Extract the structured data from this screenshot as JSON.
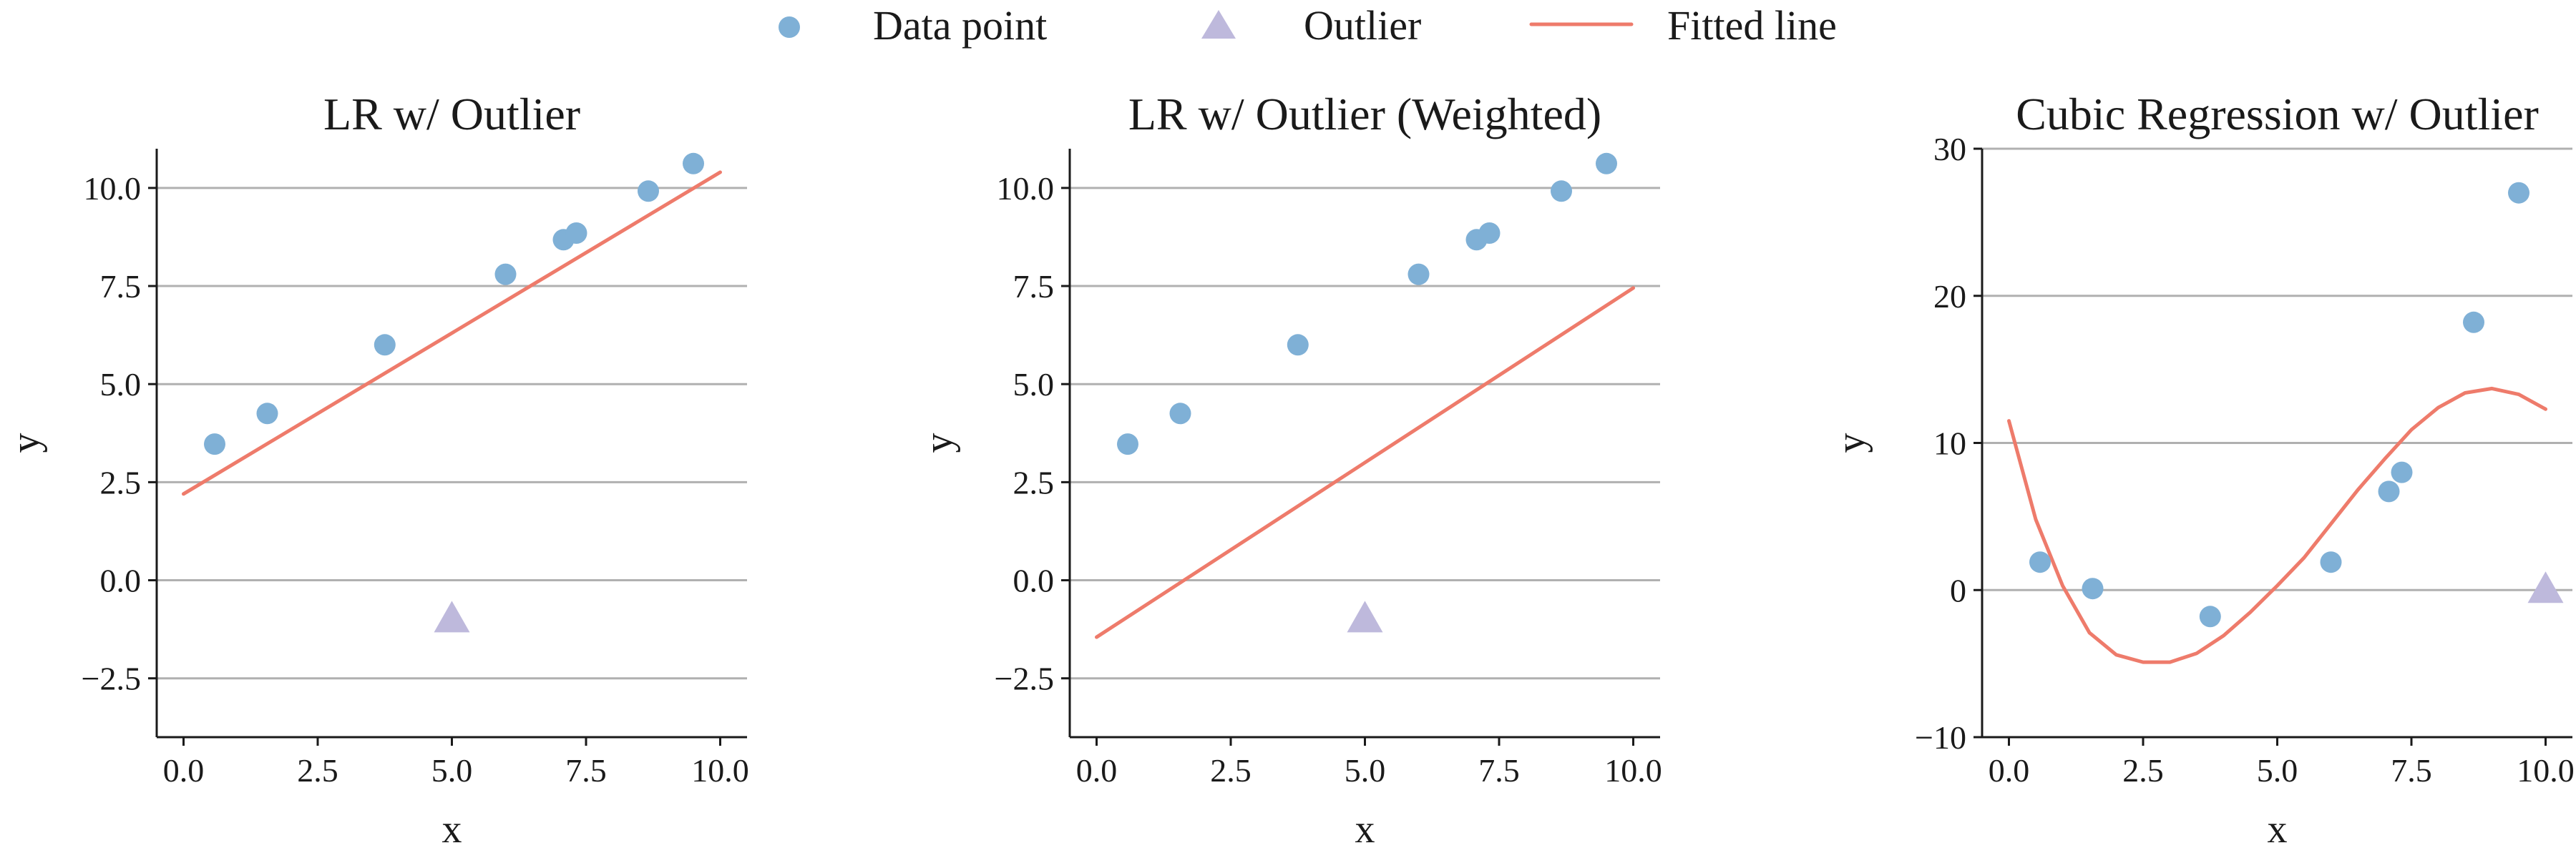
{
  "colors": {
    "data_point": "#7fb0d6",
    "outlier": "#beb9dc",
    "fitted_line": "#ee7b6b",
    "grid": "#b0b0b0"
  },
  "legend": {
    "placement": "top-center",
    "items": [
      {
        "label": "Data point",
        "marker": "circle"
      },
      {
        "label": "Outlier",
        "marker": "triangle"
      },
      {
        "label": "Fitted line",
        "marker": "line"
      }
    ]
  },
  "chart_data": [
    {
      "type": "scatter",
      "title": "LR w/ Outlier",
      "xlabel": "x",
      "ylabel": "y",
      "xlim": [
        -0.5,
        10.5
      ],
      "ylim": [
        -4.0,
        11.0
      ],
      "xticks": [
        0.0,
        2.5,
        5.0,
        7.5,
        10.0
      ],
      "xtick_labels": [
        "0.0",
        "2.5",
        "5.0",
        "7.5",
        "10.0"
      ],
      "yticks": [
        -2.5,
        0.0,
        2.5,
        5.0,
        7.5,
        10.0
      ],
      "ytick_labels": [
        "−2.5",
        "0.0",
        "2.5",
        "5.0",
        "7.5",
        "10.0"
      ],
      "grid": "horizontal",
      "series": [
        {
          "name": "Data point",
          "points": [
            [
              0.58,
              3.47
            ],
            [
              1.56,
              4.25
            ],
            [
              3.75,
              6.0
            ],
            [
              6.0,
              7.8
            ],
            [
              7.08,
              8.68
            ],
            [
              7.32,
              8.85
            ],
            [
              8.66,
              9.92
            ],
            [
              9.5,
              10.62
            ]
          ]
        },
        {
          "name": "Outlier",
          "points": [
            [
              5.0,
              -1.0
            ]
          ]
        },
        {
          "name": "Fitted line",
          "points": [
            [
              0.0,
              2.2
            ],
            [
              10.0,
              10.4
            ]
          ]
        }
      ]
    },
    {
      "type": "scatter",
      "title": "LR w/ Outlier (Weighted)",
      "xlabel": "x",
      "ylabel": "y",
      "xlim": [
        -0.5,
        10.5
      ],
      "ylim": [
        -4.0,
        11.0
      ],
      "xticks": [
        0.0,
        2.5,
        5.0,
        7.5,
        10.0
      ],
      "xtick_labels": [
        "0.0",
        "2.5",
        "5.0",
        "7.5",
        "10.0"
      ],
      "yticks": [
        -2.5,
        0.0,
        2.5,
        5.0,
        7.5,
        10.0
      ],
      "ytick_labels": [
        "−2.5",
        "0.0",
        "2.5",
        "5.0",
        "7.5",
        "10.0"
      ],
      "grid": "horizontal",
      "series": [
        {
          "name": "Data point",
          "points": [
            [
              0.58,
              3.47
            ],
            [
              1.56,
              4.25
            ],
            [
              3.75,
              6.0
            ],
            [
              6.0,
              7.8
            ],
            [
              7.08,
              8.68
            ],
            [
              7.32,
              8.85
            ],
            [
              8.66,
              9.92
            ],
            [
              9.5,
              10.62
            ]
          ]
        },
        {
          "name": "Outlier",
          "points": [
            [
              5.0,
              -1.0
            ]
          ]
        },
        {
          "name": "Fitted line",
          "points": [
            [
              0.0,
              -1.45
            ],
            [
              10.0,
              7.45
            ]
          ]
        }
      ]
    },
    {
      "type": "scatter",
      "title": "Cubic Regression w/ Outlier",
      "xlabel": "x",
      "ylabel": "y",
      "xlim": [
        -0.5,
        10.5
      ],
      "ylim": [
        -10.0,
        30.0
      ],
      "xticks": [
        0.0,
        2.5,
        5.0,
        7.5,
        10.0
      ],
      "xtick_labels": [
        "0.0",
        "2.5",
        "5.0",
        "7.5",
        "10.0"
      ],
      "yticks": [
        -10,
        0,
        10,
        20,
        30
      ],
      "ytick_labels": [
        "−10",
        "0",
        "10",
        "20",
        "30"
      ],
      "grid": "horizontal",
      "series": [
        {
          "name": "Data point",
          "points": [
            [
              0.58,
              1.9
            ],
            [
              1.56,
              0.1
            ],
            [
              3.75,
              -1.8
            ],
            [
              6.0,
              1.9
            ],
            [
              7.08,
              6.7
            ],
            [
              7.32,
              8.0
            ],
            [
              8.66,
              18.2
            ],
            [
              9.5,
              27.0
            ]
          ]
        },
        {
          "name": "Outlier",
          "points": [
            [
              10.0,
              0.0
            ]
          ]
        },
        {
          "name": "Fitted line",
          "points": [
            [
              0.0,
              11.5
            ],
            [
              0.5,
              4.8
            ],
            [
              1.0,
              0.3
            ],
            [
              1.5,
              -2.9
            ],
            [
              2.0,
              -4.4
            ],
            [
              2.5,
              -4.9
            ],
            [
              3.0,
              -4.9
            ],
            [
              3.5,
              -4.3
            ],
            [
              4.0,
              -3.1
            ],
            [
              4.5,
              -1.5
            ],
            [
              5.0,
              0.3
            ],
            [
              5.5,
              2.2
            ],
            [
              6.0,
              4.5
            ],
            [
              6.5,
              6.8
            ],
            [
              7.0,
              8.9
            ],
            [
              7.5,
              10.9
            ],
            [
              8.0,
              12.4
            ],
            [
              8.5,
              13.4
            ],
            [
              9.0,
              13.7
            ],
            [
              9.5,
              13.3
            ],
            [
              10.0,
              12.3
            ]
          ]
        }
      ]
    }
  ]
}
